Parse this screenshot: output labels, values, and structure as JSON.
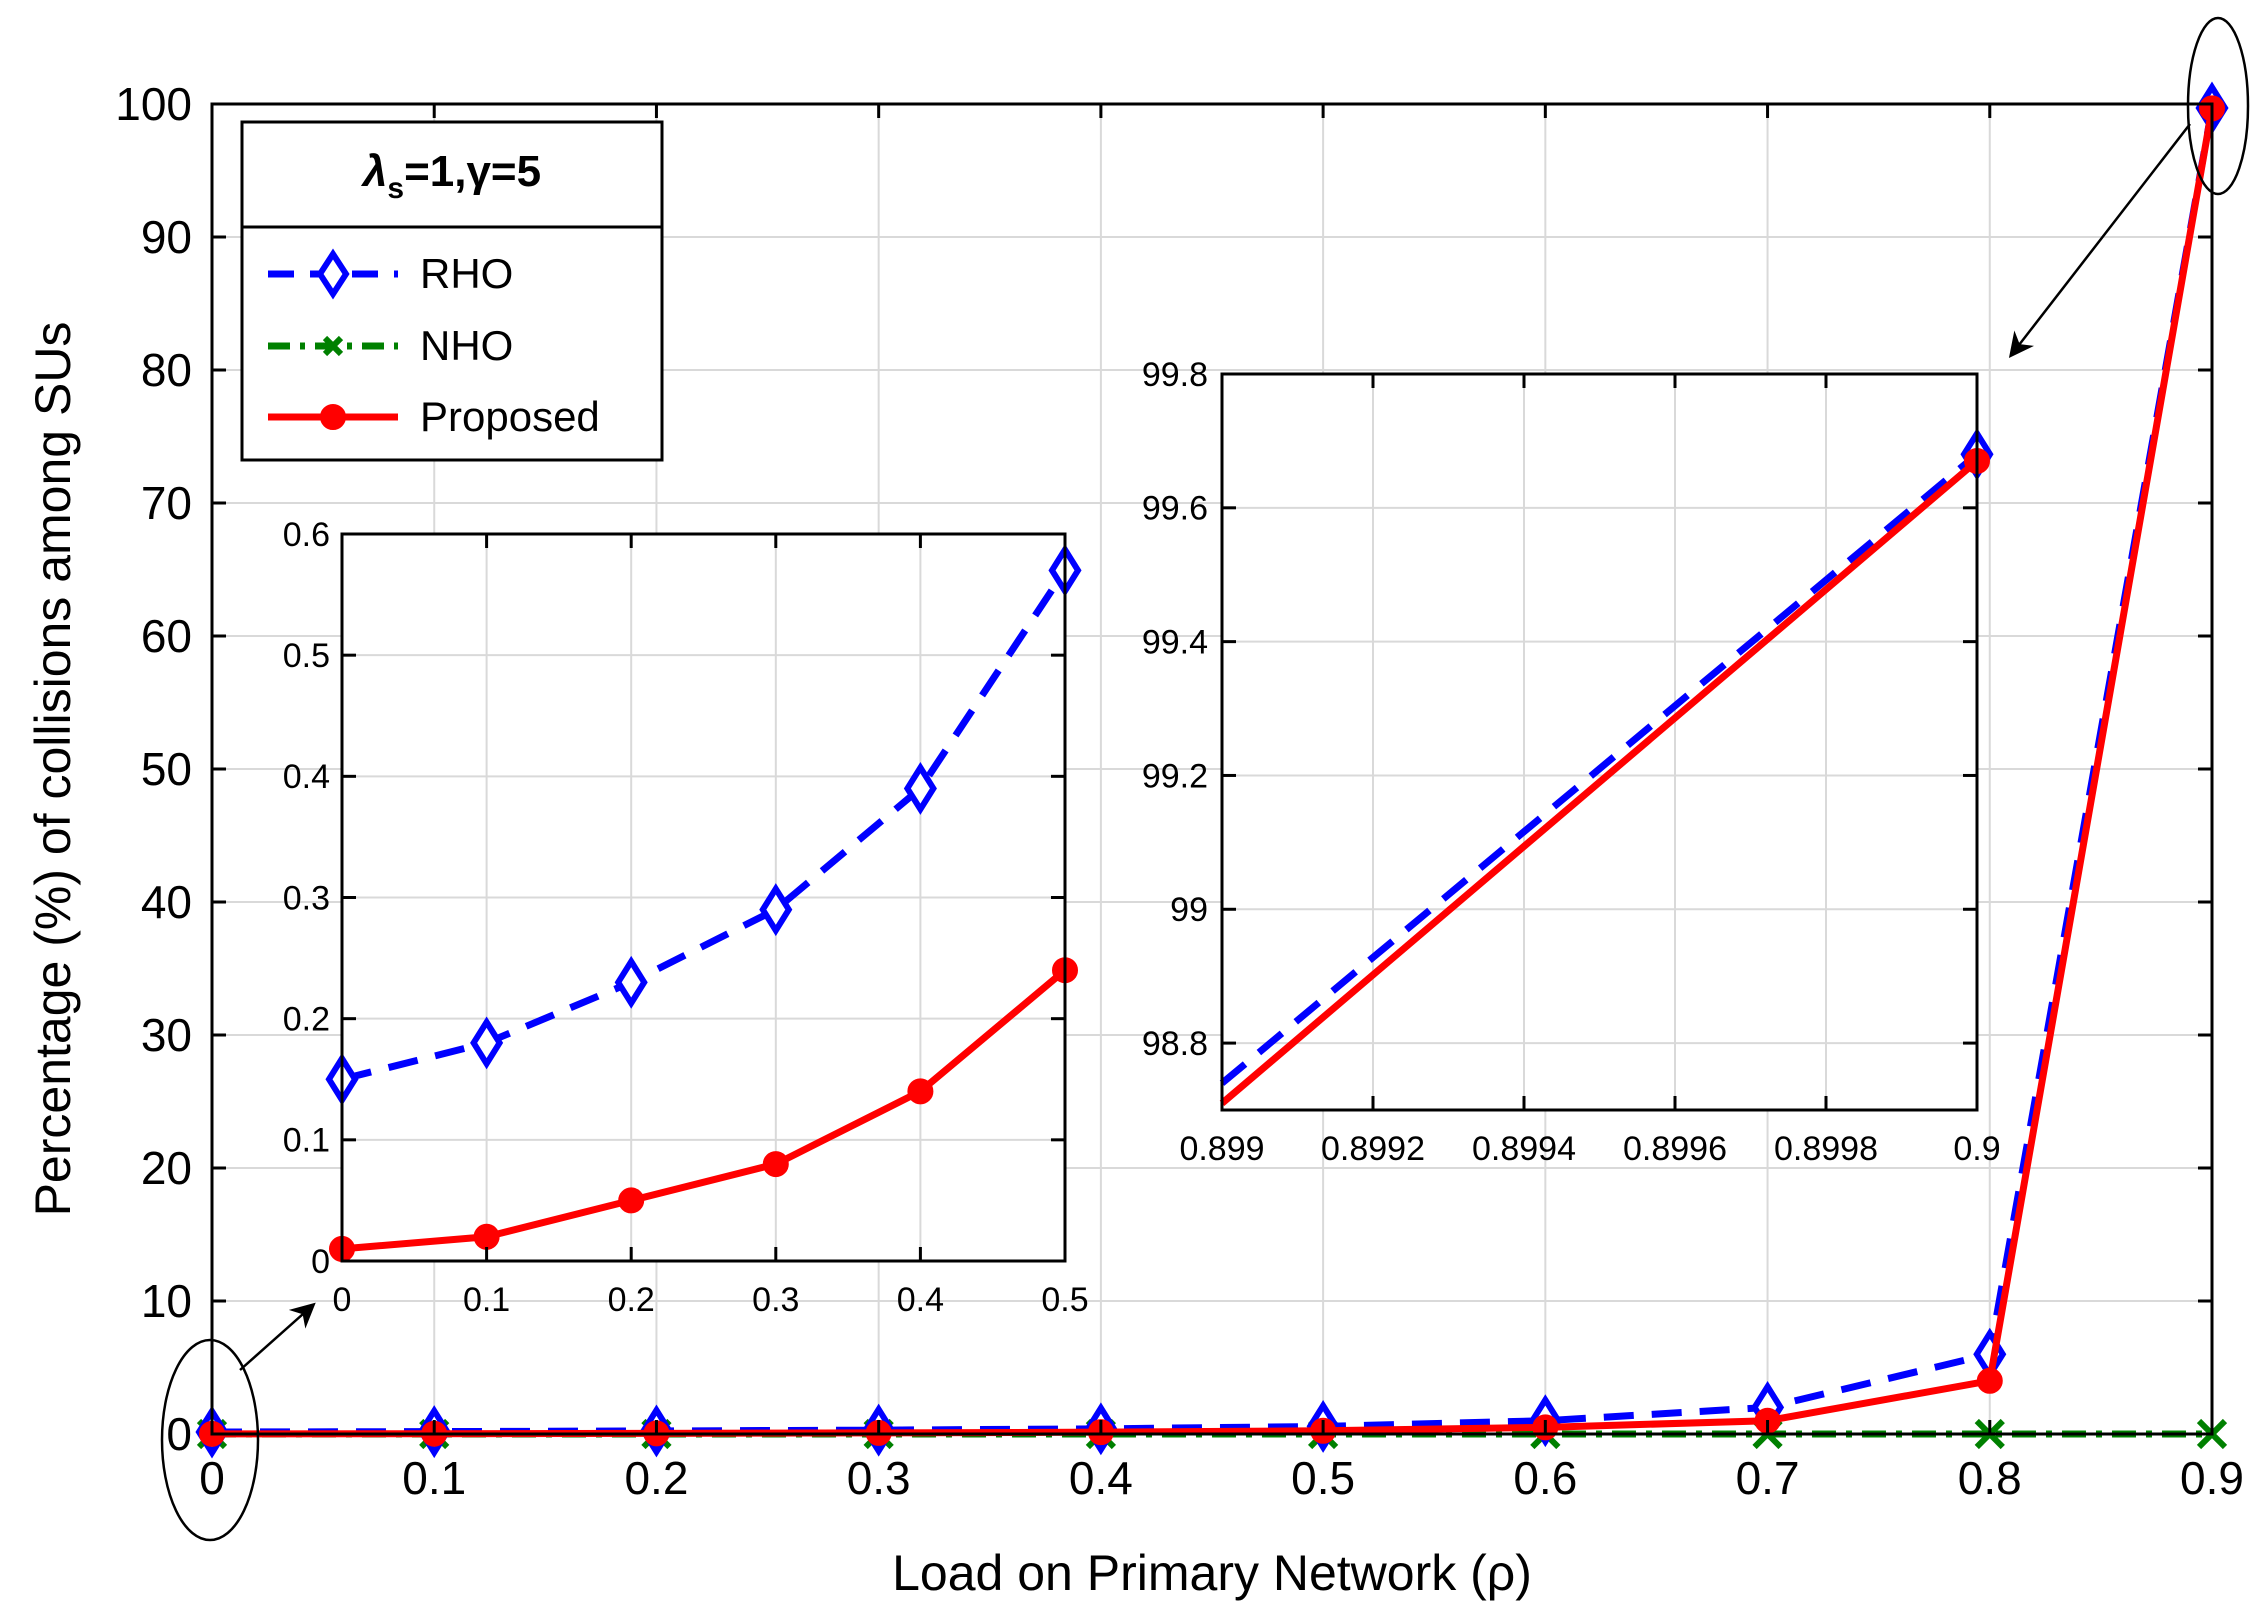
{
  "chart_data": {
    "type": "line",
    "main": {
      "xlabel": "Load on Primary Network (ρ)",
      "ylabel": "Percentage (%) of collisions among SUs",
      "xlim": [
        0,
        0.9
      ],
      "ylim": [
        0,
        100
      ],
      "x": [
        0,
        0.1,
        0.2,
        0.3,
        0.4,
        0.5,
        0.6,
        0.7,
        0.8,
        0.9
      ],
      "xticks": [
        "0",
        "0.1",
        "0.2",
        "0.3",
        "0.4",
        "0.5",
        "0.6",
        "0.7",
        "0.8",
        "0.9"
      ],
      "yticks": [
        "0",
        "10",
        "20",
        "30",
        "40",
        "50",
        "60",
        "70",
        "80",
        "90",
        "100"
      ],
      "grid": true,
      "series": [
        {
          "name": "RHO",
          "color": "#0000ff",
          "style": "dashed",
          "marker": "diamond",
          "values": [
            0.15,
            0.18,
            0.23,
            0.29,
            0.39,
            0.57,
            1.0,
            2.0,
            6.0,
            99.7
          ]
        },
        {
          "name": "NHO",
          "color": "#008000",
          "style": "dashdot",
          "marker": "x",
          "values": [
            0,
            0,
            0,
            0,
            0,
            0,
            0,
            0,
            0,
            0
          ]
        },
        {
          "name": "Proposed",
          "color": "#ff0000",
          "style": "solid",
          "marker": "circle",
          "values": [
            0.01,
            0.02,
            0.05,
            0.08,
            0.14,
            0.24,
            0.5,
            1.0,
            4.0,
            99.67
          ]
        }
      ]
    },
    "legend": {
      "title_symbol": "λ",
      "title_subscript": "s",
      "title_rest": "=1,γ=5",
      "location": "top-left",
      "entries": [
        "RHO",
        "NHO",
        "Proposed"
      ]
    },
    "inset_left": {
      "xlim": [
        0,
        0.5
      ],
      "ylim": [
        0,
        0.6
      ],
      "xticks": [
        "0",
        "0.1",
        "0.2",
        "0.3",
        "0.4",
        "0.5"
      ],
      "yticks": [
        "0",
        "0.1",
        "0.2",
        "0.3",
        "0.4",
        "0.5",
        "0.6"
      ],
      "x": [
        0,
        0.1,
        0.2,
        0.3,
        0.4,
        0.5
      ],
      "series": [
        {
          "name": "RHO",
          "values": [
            0.15,
            0.18,
            0.23,
            0.29,
            0.39,
            0.57
          ]
        },
        {
          "name": "Proposed",
          "values": [
            0.01,
            0.02,
            0.05,
            0.08,
            0.14,
            0.24
          ]
        }
      ]
    },
    "inset_right": {
      "xlim": [
        0.899,
        0.9
      ],
      "ylim": [
        98.7,
        99.8
      ],
      "xticks": [
        "0.899",
        "0.8992",
        "0.8994",
        "0.8996",
        "0.8998",
        "0.9"
      ],
      "yticks": [
        "98.8",
        "99",
        "99.2",
        "99.4",
        "99.6",
        "99.8"
      ],
      "series": [
        {
          "name": "RHO",
          "x": [
            0.899,
            0.9
          ],
          "values": [
            98.74,
            99.68
          ]
        },
        {
          "name": "Proposed",
          "x": [
            0.899,
            0.9
          ],
          "values": [
            98.71,
            99.67
          ]
        }
      ]
    }
  }
}
